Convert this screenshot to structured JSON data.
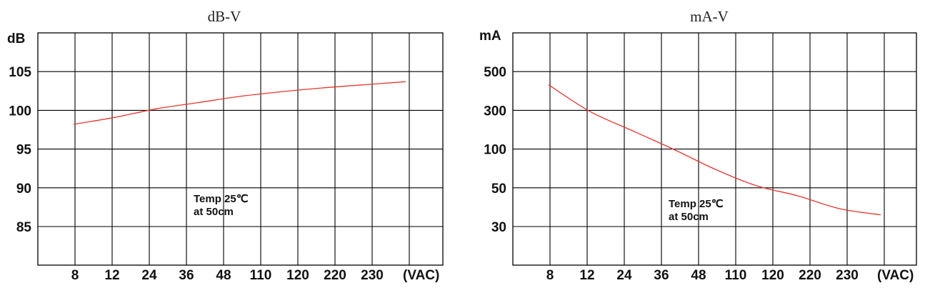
{
  "chart_data": [
    {
      "type": "line",
      "title": "dB-V",
      "ylabel": "dB",
      "xlabel": "(VAC)",
      "categories": [
        "8",
        "12",
        "24",
        "36",
        "48",
        "110",
        "120",
        "220",
        "230"
      ],
      "yticks": [
        "105",
        "100",
        "95",
        "90",
        "85"
      ],
      "ylim": [
        80,
        110
      ],
      "grid": true,
      "annotation": [
        "Temp 25℃",
        "at 50cm"
      ],
      "series": [
        {
          "color": "#e8352e",
          "x": [
            8,
            12,
            24,
            36,
            48,
            110,
            120,
            220,
            230
          ],
          "values": [
            98.2,
            99.1,
            100.2,
            101.0,
            101.8,
            102.4,
            102.9,
            103.3,
            103.7
          ]
        }
      ]
    },
    {
      "type": "line",
      "title": "mA-V",
      "ylabel": "mA",
      "xlabel": "(VAC)",
      "categories": [
        "8",
        "12",
        "24",
        "36",
        "48",
        "110",
        "120",
        "220",
        "230"
      ],
      "yticks": [
        "500",
        "300",
        "100",
        "50",
        "30"
      ],
      "grid": true,
      "annotation": [
        "Temp 25℃",
        "at 50cm"
      ],
      "series": [
        {
          "color": "#e8352e",
          "x": [
            8,
            12,
            24,
            36,
            48,
            110,
            120,
            220,
            230
          ],
          "values": [
            420,
            290,
            170,
            100,
            70,
            52,
            45,
            38,
            35
          ]
        }
      ]
    }
  ]
}
